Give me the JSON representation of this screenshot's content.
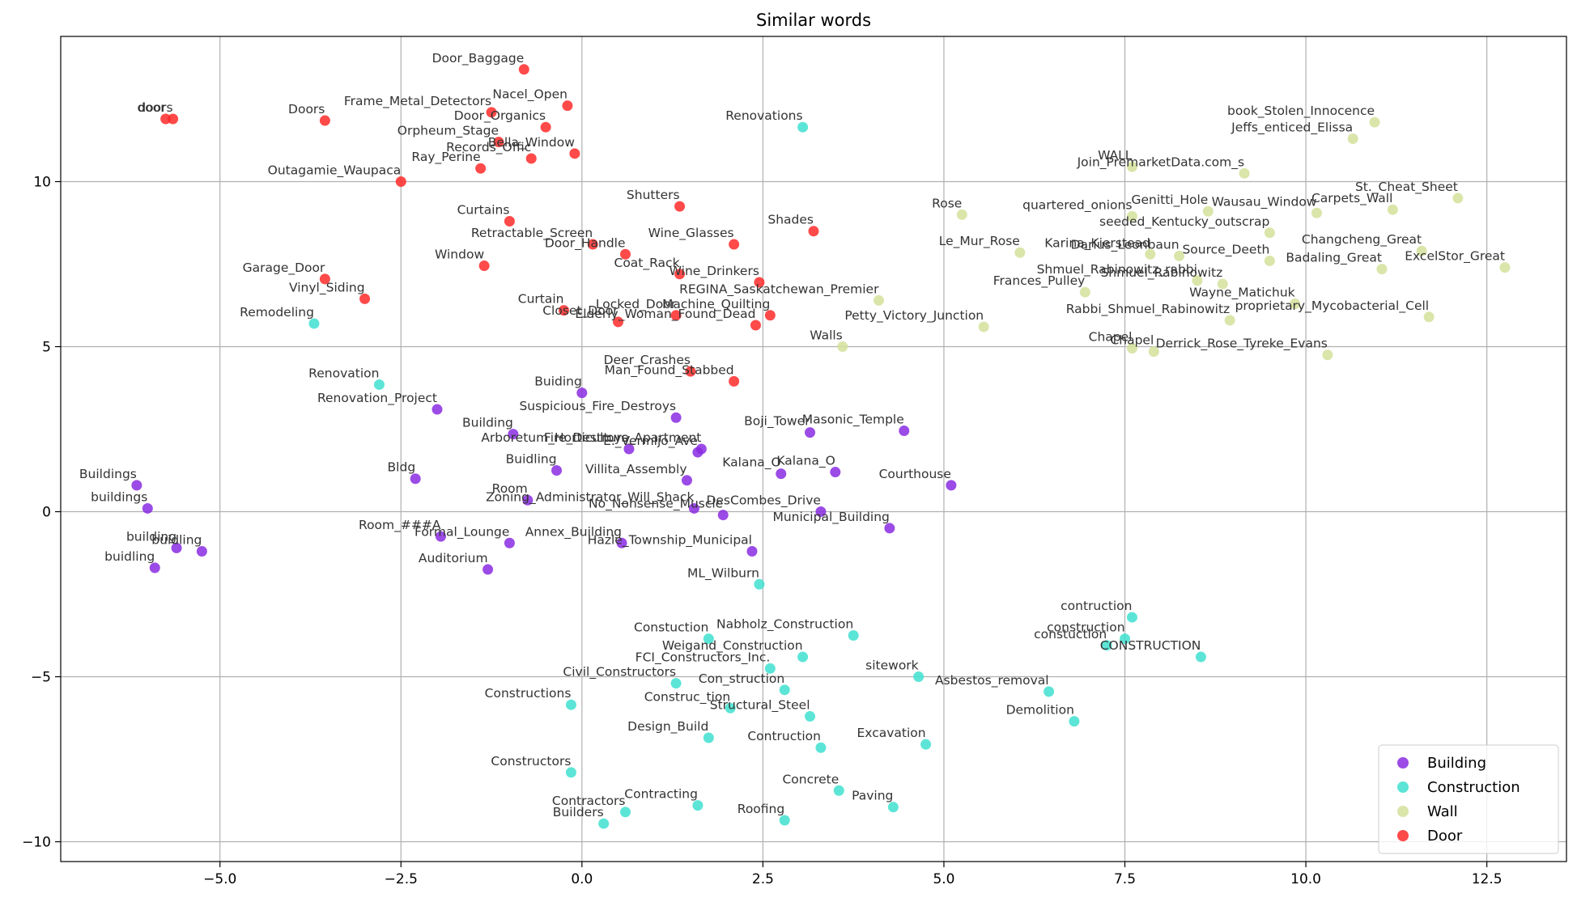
{
  "chart_data": {
    "type": "scatter",
    "title": "Similar words",
    "xlabel": "",
    "ylabel": "",
    "xlim": [
      -7.2,
      13.6
    ],
    "ylim": [
      -10.6,
      14.4
    ],
    "xticks": [
      -5.0,
      -2.5,
      0.0,
      2.5,
      5.0,
      7.5,
      10.0,
      12.5
    ],
    "xtick_labels": [
      "−5.0",
      "−2.5",
      "0.0",
      "2.5",
      "5.0",
      "7.5",
      "10.0",
      "12.5"
    ],
    "yticks": [
      -10,
      -5,
      0,
      5,
      10
    ],
    "ytick_labels": [
      "−10",
      "−5",
      "0",
      "5",
      "10"
    ],
    "grid": true,
    "legend_position": "bottom-right",
    "series": [
      {
        "name": "Building",
        "color": "#8A2BE2",
        "points": [
          {
            "label": "Buildings",
            "x": -6.15,
            "y": 0.8
          },
          {
            "label": "buildings",
            "x": -6.0,
            "y": 0.1
          },
          {
            "label": "building",
            "x": -5.6,
            "y": -1.1
          },
          {
            "label": "buidling",
            "x": -5.25,
            "y": -1.2
          },
          {
            "label": "buidling",
            "x": -5.9,
            "y": -1.7
          },
          {
            "label": "Bldg",
            "x": -2.3,
            "y": 1.0
          },
          {
            "label": "Renovation_Project",
            "x": -2.0,
            "y": 3.1
          },
          {
            "label": "Building",
            "x": -0.95,
            "y": 2.35
          },
          {
            "label": "Room_###A",
            "x": -1.95,
            "y": -0.75
          },
          {
            "label": "Formal_Lounge",
            "x": -1.0,
            "y": -0.95
          },
          {
            "label": "Auditorium",
            "x": -1.3,
            "y": -1.75
          },
          {
            "label": "Room",
            "x": -0.75,
            "y": 0.35
          },
          {
            "label": "Buidling",
            "x": -0.35,
            "y": 1.25
          },
          {
            "label": "Buiding",
            "x": 0.0,
            "y": 3.6
          },
          {
            "label": "Suspicious_Fire_Destroys",
            "x": 1.3,
            "y": 2.85
          },
          {
            "label": "Fire_Destroys_Apartment",
            "x": 1.65,
            "y": 1.9
          },
          {
            "label": "Arboretum_Horticulture",
            "x": 0.65,
            "y": 1.9
          },
          {
            "label": "E._Vermijo_Ave",
            "x": 1.6,
            "y": 1.8
          },
          {
            "label": "Villita_Assembly",
            "x": 1.45,
            "y": 0.95
          },
          {
            "label": "Annex_Building",
            "x": 0.55,
            "y": -0.95
          },
          {
            "label": "Zoning_Administrator_Will_Shack",
            "x": 1.55,
            "y": 0.1
          },
          {
            "label": "No_Nonsense_Muscle",
            "x": 1.95,
            "y": -0.1
          },
          {
            "label": "Hazle_Township_Municipal",
            "x": 2.35,
            "y": -1.2
          },
          {
            "label": "DesCombes_Drive",
            "x": 3.3,
            "y": 0.0
          },
          {
            "label": "Boji_Tower",
            "x": 3.15,
            "y": 2.4
          },
          {
            "label": "Masonic_Temple",
            "x": 4.45,
            "y": 2.45
          },
          {
            "label": "Kalana_O",
            "x": 2.75,
            "y": 1.15
          },
          {
            "label": "Kalana_O",
            "x": 3.5,
            "y": 1.2
          },
          {
            "label": "Municipal_Building",
            "x": 4.25,
            "y": -0.5
          },
          {
            "label": "Courthouse",
            "x": 5.1,
            "y": 0.8
          }
        ]
      },
      {
        "name": "Construction",
        "color": "#40E0D0",
        "points": [
          {
            "label": "Remodeling",
            "x": -3.7,
            "y": 5.7
          },
          {
            "label": "Renovation",
            "x": -2.8,
            "y": 3.85
          },
          {
            "label": "Renovations",
            "x": 3.05,
            "y": 11.65
          },
          {
            "label": "ML_Wilburn",
            "x": 2.45,
            "y": -2.2
          },
          {
            "label": "Constuction",
            "x": 1.75,
            "y": -3.85
          },
          {
            "label": "Nabholz_Construction",
            "x": 3.75,
            "y": -3.75
          },
          {
            "label": "Weigand_Construction",
            "x": 3.05,
            "y": -4.4
          },
          {
            "label": "FCI_Constructors_Inc.",
            "x": 2.6,
            "y": -4.75
          },
          {
            "label": "Civil_Constructors",
            "x": 1.3,
            "y": -5.2
          },
          {
            "label": "Con_struction",
            "x": 2.8,
            "y": -5.4
          },
          {
            "label": "Constructions",
            "x": -0.15,
            "y": -5.85
          },
          {
            "label": "Construc_tion",
            "x": 2.05,
            "y": -5.95
          },
          {
            "label": "Structural_Steel",
            "x": 3.15,
            "y": -6.2
          },
          {
            "label": "Design_Build",
            "x": 1.75,
            "y": -6.85
          },
          {
            "label": "Contruction",
            "x": 3.3,
            "y": -7.15
          },
          {
            "label": "Constructors",
            "x": -0.15,
            "y": -7.9
          },
          {
            "label": "Concrete",
            "x": 3.55,
            "y": -8.45
          },
          {
            "label": "Contracting",
            "x": 1.6,
            "y": -8.9
          },
          {
            "label": "Paving",
            "x": 4.3,
            "y": -8.95
          },
          {
            "label": "Contractors",
            "x": 0.6,
            "y": -9.1
          },
          {
            "label": "Builders",
            "x": 0.3,
            "y": -9.45
          },
          {
            "label": "Roofing",
            "x": 2.8,
            "y": -9.35
          },
          {
            "label": "sitework",
            "x": 4.65,
            "y": -5.0
          },
          {
            "label": "Excavation",
            "x": 4.75,
            "y": -7.05
          },
          {
            "label": "Asbestos_removal",
            "x": 6.45,
            "y": -5.45
          },
          {
            "label": "Demolition",
            "x": 6.8,
            "y": -6.35
          },
          {
            "label": "contruction",
            "x": 7.6,
            "y": -3.2
          },
          {
            "label": "construction",
            "x": 7.5,
            "y": -3.85
          },
          {
            "label": "constuction",
            "x": 7.25,
            "y": -4.05
          },
          {
            "label": "CONSTRUCTION",
            "x": 8.55,
            "y": -4.4
          }
        ]
      },
      {
        "name": "Wall",
        "color": "#D4E09B",
        "points": [
          {
            "label": "Walls",
            "x": 3.6,
            "y": 5.0
          },
          {
            "label": "REGINA_Saskatchewan_Premier",
            "x": 4.1,
            "y": 6.4
          },
          {
            "label": "Petty_Victory_Junction",
            "x": 5.55,
            "y": 5.6
          },
          {
            "label": "Rose",
            "x": 5.25,
            "y": 9.0
          },
          {
            "label": "Le_Mur_Rose",
            "x": 6.05,
            "y": 7.85
          },
          {
            "label": "WALL",
            "x": 7.6,
            "y": 10.45
          },
          {
            "label": "Join_PremarketData.com_s",
            "x": 9.15,
            "y": 10.25
          },
          {
            "label": "quartered_onions",
            "x": 7.6,
            "y": 8.95
          },
          {
            "label": "Genitti_Hole",
            "x": 8.65,
            "y": 9.1
          },
          {
            "label": "seeded_Kentucky_outscrap",
            "x": 9.5,
            "y": 8.45
          },
          {
            "label": "Karina_Kierstead",
            "x": 7.85,
            "y": 7.8
          },
          {
            "label": "Darius_Leonbaun",
            "x": 8.25,
            "y": 7.75
          },
          {
            "label": "Source_Deeth",
            "x": 9.5,
            "y": 7.6
          },
          {
            "label": "Shmuel_Rabinowitz_rabbi",
            "x": 8.5,
            "y": 7.0
          },
          {
            "label": "Shmuel_Rabinowitz",
            "x": 8.85,
            "y": 6.9
          },
          {
            "label": "Frances_Pulley",
            "x": 6.95,
            "y": 6.65
          },
          {
            "label": "Wayne_Matichuk",
            "x": 9.85,
            "y": 6.3
          },
          {
            "label": "Rabbi_Shmuel_Rabinowitz",
            "x": 8.95,
            "y": 5.8
          },
          {
            "label": "Chapel",
            "x": 7.6,
            "y": 4.95
          },
          {
            "label": "Derrick_Rose_Tyreke_Evans",
            "x": 10.3,
            "y": 4.75
          },
          {
            "label": "Wausau_Window",
            "x": 10.15,
            "y": 9.05
          },
          {
            "label": "Carpets_Wall",
            "x": 11.2,
            "y": 9.15
          },
          {
            "label": "St._Cheat_Sheet",
            "x": 12.1,
            "y": 9.5
          },
          {
            "label": "Badaling_Great",
            "x": 11.05,
            "y": 7.35
          },
          {
            "label": "Changcheng_Great",
            "x": 11.6,
            "y": 7.9
          },
          {
            "label": "ExcelStor_Great",
            "x": 12.75,
            "y": 7.4
          },
          {
            "label": "proprietary_Mycobacterial_Cell",
            "x": 11.7,
            "y": 5.9
          },
          {
            "label": "book_Stolen_Innocence",
            "x": 10.95,
            "y": 11.8
          },
          {
            "label": "Jeffs_enticed_Elissa",
            "x": 10.65,
            "y": 11.3
          },
          {
            "label": "Chapel",
            "x": 7.9,
            "y": 4.85
          }
        ]
      },
      {
        "name": "Door",
        "color": "#FF2A2A",
        "points": [
          {
            "label": "door",
            "x": -5.75,
            "y": 11.9
          },
          {
            "label": "doors",
            "x": -5.65,
            "y": 11.9
          },
          {
            "label": "Doors",
            "x": -3.55,
            "y": 11.85
          },
          {
            "label": "Outagamie_Waupaca",
            "x": -2.5,
            "y": 10.0
          },
          {
            "label": "Garage_Door",
            "x": -3.55,
            "y": 7.05
          },
          {
            "label": "Vinyl_Siding",
            "x": -3.0,
            "y": 6.45
          },
          {
            "label": "Door_Baggage",
            "x": -0.8,
            "y": 13.4
          },
          {
            "label": "Frame_Metal_Detectors",
            "x": -1.25,
            "y": 12.1
          },
          {
            "label": "Nacel_Open",
            "x": -0.2,
            "y": 12.3
          },
          {
            "label": "Door_Organics",
            "x": -0.5,
            "y": 11.65
          },
          {
            "label": "Orpheum_Stage",
            "x": -1.15,
            "y": 11.2
          },
          {
            "label": "Bella_Window",
            "x": -0.1,
            "y": 10.85
          },
          {
            "label": "Records_Offic",
            "x": -0.7,
            "y": 10.7
          },
          {
            "label": "Ray_Perine",
            "x": -1.4,
            "y": 10.4
          },
          {
            "label": "Curtains",
            "x": -1.0,
            "y": 8.8
          },
          {
            "label": "Retractable_Screen",
            "x": 0.15,
            "y": 8.1
          },
          {
            "label": "Window",
            "x": -1.35,
            "y": 7.45
          },
          {
            "label": "Shutters",
            "x": 1.35,
            "y": 9.25
          },
          {
            "label": "Door_Handle",
            "x": 0.6,
            "y": 7.8
          },
          {
            "label": "Wine_Glasses",
            "x": 2.1,
            "y": 8.1
          },
          {
            "label": "Coat_Rack",
            "x": 1.35,
            "y": 7.2
          },
          {
            "label": "Wine_Drinkers",
            "x": 2.45,
            "y": 6.95
          },
          {
            "label": "Shades",
            "x": 3.2,
            "y": 8.5
          },
          {
            "label": "Curtain",
            "x": -0.25,
            "y": 6.1
          },
          {
            "label": "Closet_Door",
            "x": 0.5,
            "y": 5.75
          },
          {
            "label": "Locked_Door",
            "x": 1.3,
            "y": 5.95
          },
          {
            "label": "Elderly_Woman_Found_Dead",
            "x": 2.4,
            "y": 5.65
          },
          {
            "label": "Machine_Quilting",
            "x": 2.6,
            "y": 5.95
          },
          {
            "label": "Deer_Crashes",
            "x": 1.5,
            "y": 4.25
          },
          {
            "label": "Man_Found_Stabbed",
            "x": 2.1,
            "y": 3.95
          }
        ]
      }
    ]
  }
}
